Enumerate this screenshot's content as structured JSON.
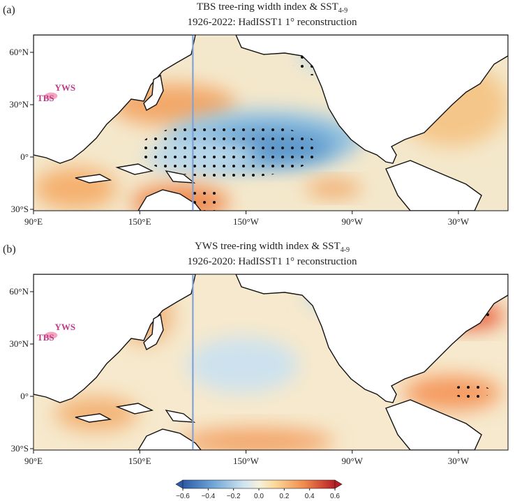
{
  "panels": [
    {
      "label": "(a)",
      "title": "TBS tree-ring width index & SST",
      "title_subscript": "4-9",
      "subtitle": "1926-2022: HadISST1 1° reconstruction"
    },
    {
      "label": "(b)",
      "title": "YWS tree-ring width index & SST",
      "title_subscript": "4-9",
      "subtitle": "1926-2020: HadISST1 1° reconstruction"
    }
  ],
  "map": {
    "lon_ticks": [
      {
        "value": 90,
        "label": "90°E"
      },
      {
        "value": 150,
        "label": "150°E"
      },
      {
        "value": 210,
        "label": "150°W"
      },
      {
        "value": 270,
        "label": "90°W"
      },
      {
        "value": 330,
        "label": "30°W"
      }
    ],
    "lat_ticks": [
      {
        "value": 60,
        "label": "60°N"
      },
      {
        "value": 30,
        "label": "30°N"
      },
      {
        "value": 0,
        "label": "0°"
      },
      {
        "value": -30,
        "label": "30°S"
      }
    ],
    "sites": [
      "TBS",
      "YWS"
    ]
  },
  "colorbar": {
    "ticks": [
      {
        "value": -0.6,
        "label": "−0.6"
      },
      {
        "value": -0.4,
        "label": "−0.4"
      },
      {
        "value": -0.2,
        "label": "−0.2"
      },
      {
        "value": 0,
        "label": "0.0"
      },
      {
        "value": 0.2,
        "label": "0.2"
      },
      {
        "value": 0.4,
        "label": "0.4"
      },
      {
        "value": 0.6,
        "label": "0.6"
      }
    ]
  }
}
